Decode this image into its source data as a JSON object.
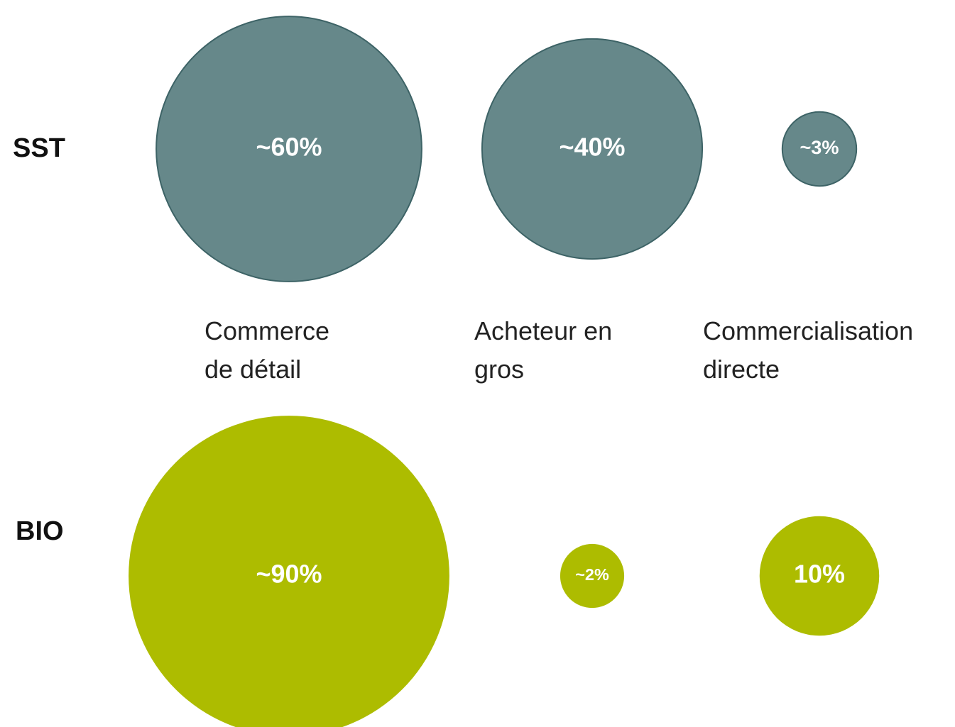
{
  "chart_data": {
    "type": "bubble",
    "categories": [
      "Commerce de détail",
      "Acheteur en gros",
      "Commercialisation directe"
    ],
    "series": [
      {
        "name": "SST",
        "color": "#66888a",
        "values": [
          60,
          40,
          3
        ],
        "value_labels": [
          "~60%",
          "~40%",
          "~3%"
        ]
      },
      {
        "name": "BIO",
        "color": "#adbc00",
        "values": [
          90,
          2,
          10
        ],
        "value_labels": [
          "~90%",
          "~2%",
          "10%"
        ]
      }
    ]
  }
}
